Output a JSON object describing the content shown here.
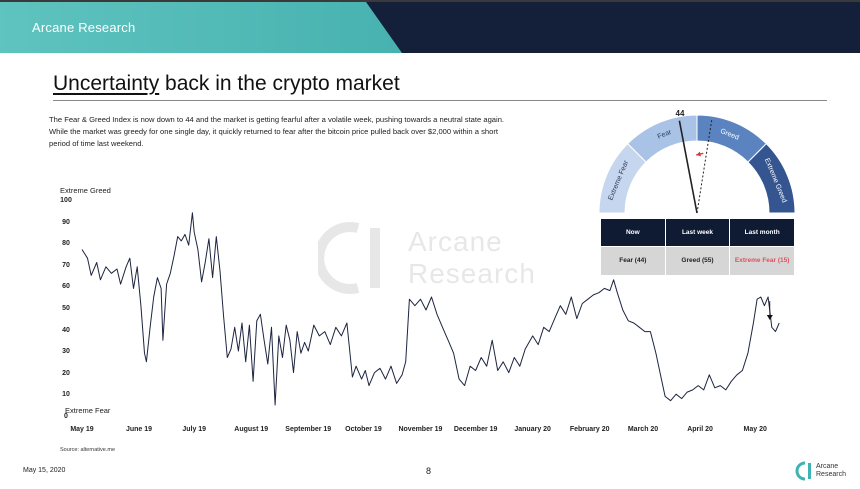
{
  "header": {
    "brand": "Arcane Research"
  },
  "title": {
    "underlined": "Uncertainty",
    "rest": " back in the crypto market"
  },
  "intro": "The Fear & Greed Index is now down to 44 and the market is getting fearful after a volatile week, pushing towards a neutral state again. While the market was greedy for one single day, it quickly returned to fear after the bitcoin price pulled back over $2,000 within a short period of time last weekend.",
  "watermark": {
    "line1": "Arcane",
    "line2": "Research"
  },
  "source": "Source: alternative.me",
  "footer": {
    "date": "May 15, 2020",
    "page": "8",
    "logo_line1": "Arcane",
    "logo_line2": "Research"
  },
  "gauge": {
    "value": "44",
    "segments": [
      "Extreme Fear",
      "Fear",
      "Greed",
      "Extreme Greed"
    ],
    "needle_now": 44,
    "needle_last_week": 55
  },
  "summary_table": {
    "headers": [
      "Now",
      "Last week",
      "Last month"
    ],
    "values": [
      "Fear (44)",
      "Greed (55)",
      "Extreme Fear (15)"
    ]
  },
  "chart_data": {
    "type": "line",
    "ylabel_top": "Extreme Greed",
    "ylabel_bottom": "Extreme Fear",
    "ylim": [
      0,
      100
    ],
    "yticks": [
      0,
      10,
      20,
      30,
      40,
      50,
      60,
      70,
      80,
      90,
      100
    ],
    "xticks": [
      "May 19",
      "June 19",
      "July 19",
      "August 19",
      "September 19",
      "October 19",
      "November 19",
      "December 19",
      "January 20",
      "February 20",
      "March 20",
      "April 20",
      "May 20"
    ],
    "xlim": [
      "2019-05-01",
      "2020-05-15"
    ],
    "grid": false,
    "series": [
      {
        "values": [
          [
            "2019-05-01",
            78
          ],
          [
            "2019-05-04",
            74
          ],
          [
            "2019-05-06",
            66
          ],
          [
            "2019-05-09",
            72
          ],
          [
            "2019-05-11",
            64
          ],
          [
            "2019-05-14",
            70
          ],
          [
            "2019-05-17",
            67
          ],
          [
            "2019-05-20",
            69
          ],
          [
            "2019-05-22",
            62
          ],
          [
            "2019-05-25",
            70
          ],
          [
            "2019-05-27",
            74
          ],
          [
            "2019-05-29",
            60
          ],
          [
            "2019-05-31",
            70
          ],
          [
            "2019-06-02",
            52
          ],
          [
            "2019-06-04",
            30
          ],
          [
            "2019-06-05",
            26
          ],
          [
            "2019-06-07",
            42
          ],
          [
            "2019-06-09",
            56
          ],
          [
            "2019-06-11",
            65
          ],
          [
            "2019-06-13",
            60
          ],
          [
            "2019-06-14",
            36
          ],
          [
            "2019-06-16",
            62
          ],
          [
            "2019-06-18",
            67
          ],
          [
            "2019-06-20",
            75
          ],
          [
            "2019-06-22",
            84
          ],
          [
            "2019-06-24",
            82
          ],
          [
            "2019-06-26",
            85
          ],
          [
            "2019-06-28",
            80
          ],
          [
            "2019-06-30",
            95
          ],
          [
            "2019-07-01",
            86
          ],
          [
            "2019-07-03",
            78
          ],
          [
            "2019-07-05",
            63
          ],
          [
            "2019-07-07",
            72
          ],
          [
            "2019-07-09",
            83
          ],
          [
            "2019-07-11",
            65
          ],
          [
            "2019-07-13",
            84
          ],
          [
            "2019-07-15",
            68
          ],
          [
            "2019-07-17",
            47
          ],
          [
            "2019-07-19",
            28
          ],
          [
            "2019-07-21",
            32
          ],
          [
            "2019-07-23",
            42
          ],
          [
            "2019-07-25",
            31
          ],
          [
            "2019-07-27",
            44
          ],
          [
            "2019-07-29",
            26
          ],
          [
            "2019-07-31",
            43
          ],
          [
            "2019-08-02",
            17
          ],
          [
            "2019-08-04",
            45
          ],
          [
            "2019-08-06",
            48
          ],
          [
            "2019-08-08",
            36
          ],
          [
            "2019-08-10",
            25
          ],
          [
            "2019-08-12",
            42
          ],
          [
            "2019-08-14",
            6
          ],
          [
            "2019-08-16",
            38
          ],
          [
            "2019-08-18",
            28
          ],
          [
            "2019-08-20",
            43
          ],
          [
            "2019-08-22",
            36
          ],
          [
            "2019-08-24",
            21
          ],
          [
            "2019-08-26",
            40
          ],
          [
            "2019-08-28",
            30
          ],
          [
            "2019-08-30",
            35
          ],
          [
            "2019-09-01",
            31
          ],
          [
            "2019-09-04",
            43
          ],
          [
            "2019-09-07",
            38
          ],
          [
            "2019-09-10",
            40
          ],
          [
            "2019-09-13",
            34
          ],
          [
            "2019-09-16",
            42
          ],
          [
            "2019-09-19",
            38
          ],
          [
            "2019-09-22",
            44
          ],
          [
            "2019-09-25",
            19
          ],
          [
            "2019-09-27",
            24
          ],
          [
            "2019-09-30",
            18
          ],
          [
            "2019-10-02",
            22
          ],
          [
            "2019-10-04",
            15
          ],
          [
            "2019-10-07",
            21
          ],
          [
            "2019-10-10",
            23
          ],
          [
            "2019-10-13",
            18
          ],
          [
            "2019-10-16",
            24
          ],
          [
            "2019-10-19",
            16
          ],
          [
            "2019-10-22",
            20
          ],
          [
            "2019-10-24",
            26
          ],
          [
            "2019-10-26",
            55
          ],
          [
            "2019-10-29",
            52
          ],
          [
            "2019-11-01",
            55
          ],
          [
            "2019-11-04",
            50
          ],
          [
            "2019-11-07",
            56
          ],
          [
            "2019-11-10",
            48
          ],
          [
            "2019-11-13",
            42
          ],
          [
            "2019-11-16",
            36
          ],
          [
            "2019-11-19",
            30
          ],
          [
            "2019-11-22",
            18
          ],
          [
            "2019-11-25",
            15
          ],
          [
            "2019-11-28",
            24
          ],
          [
            "2019-12-01",
            22
          ],
          [
            "2019-12-04",
            28
          ],
          [
            "2019-12-07",
            24
          ],
          [
            "2019-12-10",
            36
          ],
          [
            "2019-12-13",
            22
          ],
          [
            "2019-12-16",
            26
          ],
          [
            "2019-12-19",
            21
          ],
          [
            "2019-12-22",
            28
          ],
          [
            "2019-12-25",
            24
          ],
          [
            "2019-12-28",
            32
          ],
          [
            "2020-01-01",
            38
          ],
          [
            "2020-01-04",
            34
          ],
          [
            "2020-01-07",
            42
          ],
          [
            "2020-01-10",
            40
          ],
          [
            "2020-01-13",
            46
          ],
          [
            "2020-01-16",
            52
          ],
          [
            "2020-01-19",
            48
          ],
          [
            "2020-01-22",
            56
          ],
          [
            "2020-01-25",
            46
          ],
          [
            "2020-01-28",
            53
          ],
          [
            "2020-01-31",
            55
          ],
          [
            "2020-02-03",
            57
          ],
          [
            "2020-02-06",
            58
          ],
          [
            "2020-02-09",
            60
          ],
          [
            "2020-02-12",
            59
          ],
          [
            "2020-02-14",
            64
          ],
          [
            "2020-02-16",
            58
          ],
          [
            "2020-02-19",
            50
          ],
          [
            "2020-02-22",
            45
          ],
          [
            "2020-02-25",
            44
          ],
          [
            "2020-02-28",
            42
          ],
          [
            "2020-03-02",
            40
          ],
          [
            "2020-03-05",
            40
          ],
          [
            "2020-03-08",
            30
          ],
          [
            "2020-03-11",
            18
          ],
          [
            "2020-03-13",
            10
          ],
          [
            "2020-03-16",
            8
          ],
          [
            "2020-03-19",
            11
          ],
          [
            "2020-03-22",
            9
          ],
          [
            "2020-03-25",
            12
          ],
          [
            "2020-03-28",
            13
          ],
          [
            "2020-03-31",
            15
          ],
          [
            "2020-04-03",
            13
          ],
          [
            "2020-04-06",
            20
          ],
          [
            "2020-04-09",
            14
          ],
          [
            "2020-04-12",
            15
          ],
          [
            "2020-04-15",
            13
          ],
          [
            "2020-04-18",
            17
          ],
          [
            "2020-04-21",
            20
          ],
          [
            "2020-04-24",
            22
          ],
          [
            "2020-04-27",
            30
          ],
          [
            "2020-04-30",
            44
          ],
          [
            "2020-05-02",
            55
          ],
          [
            "2020-05-04",
            56
          ],
          [
            "2020-05-06",
            52
          ],
          [
            "2020-05-08",
            56
          ],
          [
            "2020-05-10",
            42
          ],
          [
            "2020-05-12",
            40
          ],
          [
            "2020-05-14",
            44
          ]
        ]
      }
    ]
  }
}
